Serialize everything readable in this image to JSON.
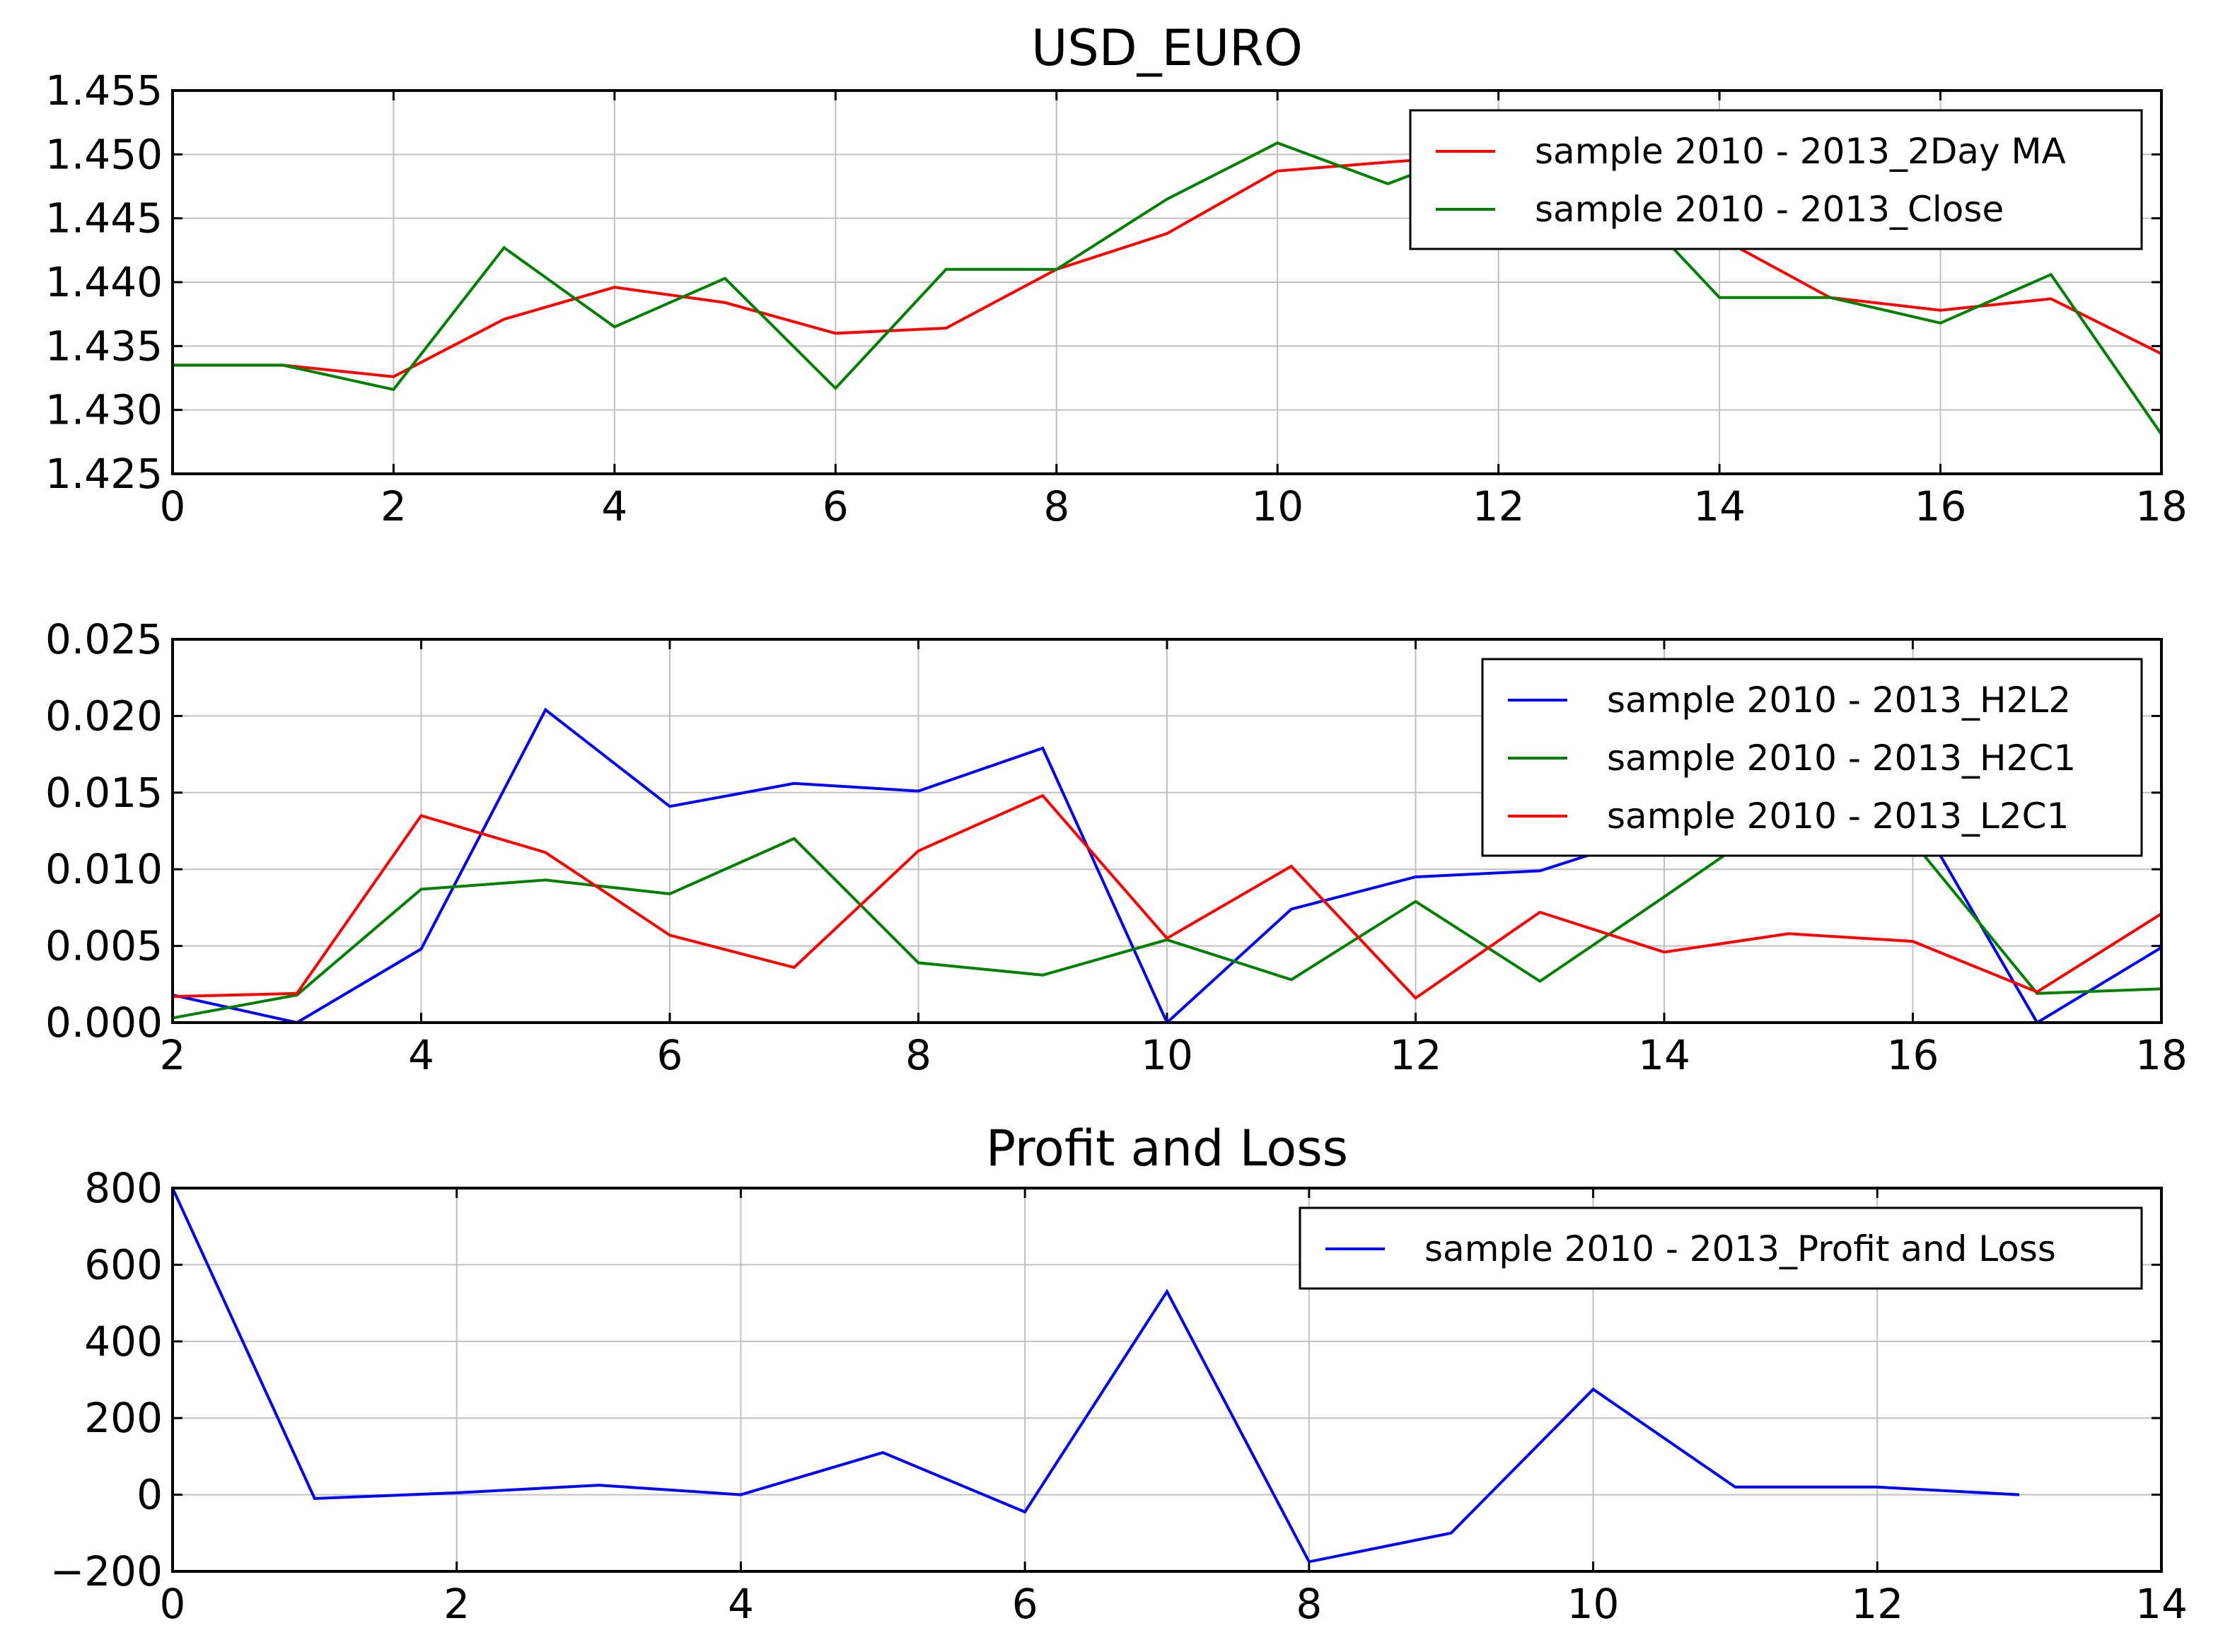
{
  "chart_data": [
    {
      "type": "line",
      "title": "USD_EURO",
      "xlim": [
        0,
        18
      ],
      "ylim": [
        1.425,
        1.455
      ],
      "xticks": [
        "0",
        "2",
        "4",
        "6",
        "8",
        "10",
        "12",
        "14",
        "16",
        "18"
      ],
      "yticks": [
        "1.425",
        "1.430",
        "1.435",
        "1.440",
        "1.445",
        "1.450",
        "1.455"
      ],
      "grid": true,
      "legend_position": "top-right",
      "series": [
        {
          "name": "sample 2010 - 2013_2Day MA",
          "color": "#ff0000",
          "x": [
            0,
            1,
            2,
            3,
            4,
            5,
            6,
            7,
            8,
            9,
            10,
            11,
            12,
            13,
            14,
            15,
            16,
            17,
            18
          ],
          "y": [
            1.4335,
            1.4335,
            1.4326,
            1.4371,
            1.4396,
            1.4384,
            1.436,
            1.4364,
            1.441,
            1.4438,
            1.4487,
            1.4494,
            1.45,
            1.4475,
            1.4435,
            1.4388,
            1.4378,
            1.4387,
            1.4344
          ]
        },
        {
          "name": "sample 2010 - 2013_Close",
          "color": "#008000",
          "x": [
            0,
            1,
            2,
            3,
            4,
            5,
            6,
            7,
            8,
            9,
            10,
            11,
            12,
            13,
            14,
            15,
            16,
            17,
            18
          ],
          "y": [
            1.4335,
            1.4335,
            1.4316,
            1.4427,
            1.4365,
            1.4403,
            1.4317,
            1.441,
            1.441,
            1.4465,
            1.4509,
            1.4477,
            1.451,
            1.448,
            1.4388,
            1.4388,
            1.4368,
            1.4406,
            1.4281
          ]
        }
      ]
    },
    {
      "type": "line",
      "title": "",
      "xlim": [
        2,
        18
      ],
      "ylim": [
        0.0,
        0.025
      ],
      "xticks": [
        "2",
        "4",
        "6",
        "8",
        "10",
        "12",
        "14",
        "16",
        "18"
      ],
      "yticks": [
        "0.000",
        "0.005",
        "0.010",
        "0.015",
        "0.020",
        "0.025"
      ],
      "grid": true,
      "legend_position": "top-right",
      "series": [
        {
          "name": "sample 2010 - 2013_H2L2",
          "color": "#0000ff",
          "x": [
            2,
            3,
            4,
            5,
            6,
            7,
            8,
            9,
            10,
            11,
            12,
            13,
            14,
            15,
            16,
            17,
            18
          ],
          "y": [
            0.0018,
            0.0,
            0.0048,
            0.0204,
            0.0141,
            0.0156,
            0.0151,
            0.0179,
            0.0,
            0.0074,
            0.0095,
            0.0099,
            0.0125,
            0.0112,
            0.014,
            0.0,
            0.0049
          ]
        },
        {
          "name": "sample 2010 - 2013_H2C1",
          "color": "#008000",
          "x": [
            2,
            3,
            4,
            5,
            6,
            7,
            8,
            9,
            10,
            11,
            12,
            13,
            14,
            15,
            16,
            17,
            18
          ],
          "y": [
            0.0003,
            0.0018,
            0.0087,
            0.0093,
            0.0084,
            0.012,
            0.0039,
            0.0031,
            0.0054,
            0.0028,
            0.0079,
            0.0027,
            0.0082,
            0.0138,
            0.0118,
            0.0019,
            0.0022
          ]
        },
        {
          "name": "sample 2010 - 2013_L2C1",
          "color": "#ff0000",
          "x": [
            2,
            3,
            4,
            5,
            6,
            7,
            8,
            9,
            10,
            11,
            12,
            13,
            14,
            15,
            16,
            17,
            18
          ],
          "y": [
            0.0017,
            0.0019,
            0.0135,
            0.0111,
            0.0057,
            0.0036,
            0.0112,
            0.0148,
            0.0055,
            0.0102,
            0.0016,
            0.0072,
            0.0046,
            0.0058,
            0.0053,
            0.002,
            0.0071
          ]
        }
      ]
    },
    {
      "type": "line",
      "title": "Profit and Loss",
      "xlim": [
        0,
        14
      ],
      "ylim": [
        -200,
        800
      ],
      "xticks": [
        "0",
        "2",
        "4",
        "6",
        "8",
        "10",
        "12",
        "14"
      ],
      "yticks": [
        "−200",
        "0",
        "200",
        "400",
        "600",
        "800"
      ],
      "grid": true,
      "legend_position": "top-right",
      "series": [
        {
          "name": "sample 2010 - 2013_Profit and Loss",
          "color": "#0000ff",
          "x": [
            0,
            1,
            2,
            3,
            4,
            5,
            6,
            7,
            8,
            9,
            10,
            11,
            12,
            13
          ],
          "y": [
            800,
            -10,
            5,
            25,
            0,
            110,
            -45,
            530,
            -175,
            -100,
            275,
            20,
            20,
            0
          ]
        }
      ]
    }
  ]
}
